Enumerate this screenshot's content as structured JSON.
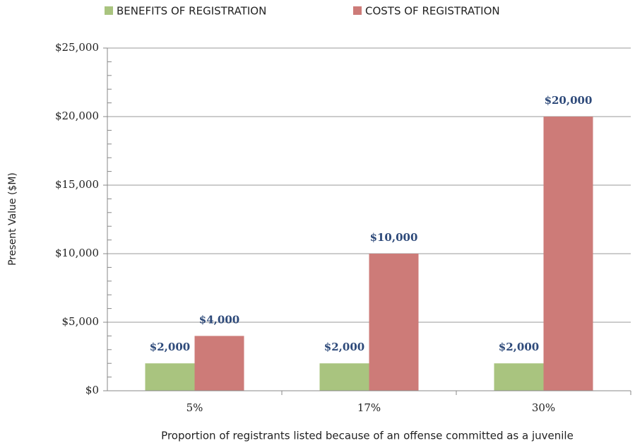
{
  "chart_data": {
    "type": "bar",
    "x_label": "Proportion of registrants listed because of an offense committed as a juvenile",
    "y_label": "Present Value ($M)",
    "categories": [
      "5%",
      "17%",
      "30%"
    ],
    "series": [
      {
        "name": "BENEFITS OF REGISTRATION",
        "color": "#a9c47f",
        "values": [
          2000,
          2000,
          2000
        ],
        "value_labels": [
          "$2,000",
          "$2,000",
          "$2,000"
        ]
      },
      {
        "name": "COSTS OF REGISTRATION",
        "color": "#cd7b78",
        "values": [
          4000,
          10000,
          20000
        ],
        "value_labels": [
          "$4,000",
          "$10,000",
          "$20,000"
        ]
      }
    ],
    "ylim": [
      0,
      25000
    ],
    "yticks": [
      {
        "value": 0,
        "label": "$0"
      },
      {
        "value": 5000,
        "label": "$5,000"
      },
      {
        "value": 10000,
        "label": "$10,000"
      },
      {
        "value": 15000,
        "label": "$15,000"
      },
      {
        "value": 20000,
        "label": "$20,000"
      },
      {
        "value": 25000,
        "label": "$25,000"
      }
    ],
    "grid": true,
    "legend": "top"
  }
}
